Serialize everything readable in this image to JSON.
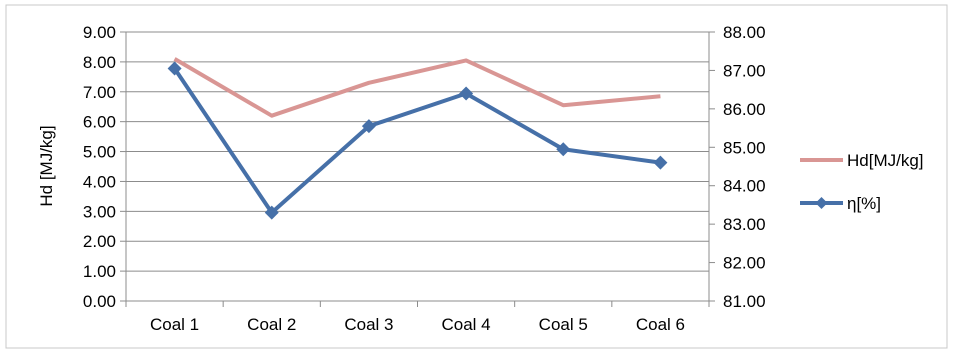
{
  "chart_data": {
    "type": "line",
    "categories": [
      "Coal 1",
      "Coal 2",
      "Coal 3",
      "Coal 4",
      "Coal 5",
      "Coal 6"
    ],
    "ylabel": "Hd [MJ/kg]",
    "ylim": [
      0,
      9
    ],
    "y_ticks": [
      "0.00",
      "1.00",
      "2.00",
      "3.00",
      "4.00",
      "5.00",
      "6.00",
      "7.00",
      "8.00",
      "9.00"
    ],
    "y2lim": [
      81,
      88
    ],
    "y2_ticks": [
      "81.00",
      "82.00",
      "83.00",
      "84.00",
      "85.00",
      "86.00",
      "87.00",
      "88.00"
    ],
    "grid": "horizontal",
    "legend_position": "right",
    "series": [
      {
        "name": "Hd[MJ/kg]",
        "axis": "left",
        "color": "#d99694",
        "marker": "none",
        "values": [
          8.1,
          6.2,
          7.3,
          8.05,
          6.55,
          6.85
        ]
      },
      {
        "name": "η[%]",
        "axis": "right",
        "color": "#4670a8",
        "marker": "diamond",
        "values": [
          87.05,
          83.3,
          85.55,
          86.4,
          84.95,
          84.6
        ]
      }
    ]
  }
}
